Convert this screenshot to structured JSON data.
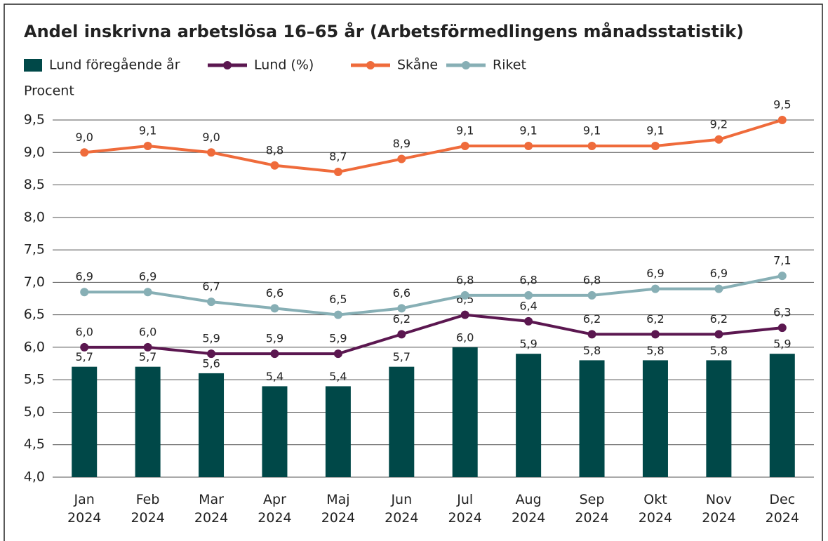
{
  "chart_data": {
    "type": "combo",
    "title": "Andel inskrivna arbetslösa 16–65 år (Arbetsförmedlingens månadsstatistik)",
    "y_label": "Procent",
    "categories": [
      "Jan 2024",
      "Feb 2024",
      "Mar 2024",
      "Apr 2024",
      "Maj 2024",
      "Jun 2024",
      "Jul 2024",
      "Aug 2024",
      "Sep 2024",
      "Okt 2024",
      "Nov 2024",
      "Dec 2024"
    ],
    "series": [
      {
        "name": "Lund föregående år",
        "type": "bar",
        "color": "#004848",
        "values": [
          5.7,
          5.7,
          5.6,
          5.4,
          5.4,
          5.7,
          6.0,
          5.9,
          5.8,
          5.8,
          5.8,
          5.9
        ],
        "value_labels": [
          "5,7",
          "5,7",
          "5,6",
          "5,4",
          "5,4",
          "5,7",
          "6,0",
          "5,9",
          "5,8",
          "5,8",
          "5,8",
          "5,9"
        ]
      },
      {
        "name": "Lund (%)",
        "type": "line",
        "color": "#5b1750",
        "values": [
          6.0,
          6.0,
          5.9,
          5.9,
          5.9,
          6.2,
          6.5,
          6.4,
          6.2,
          6.2,
          6.2,
          6.3
        ],
        "value_labels": [
          "6,0",
          "6,0",
          "5,9",
          "5,9",
          "5,9",
          "6,2",
          "6,5",
          "6,4",
          "6,2",
          "6,2",
          "6,2",
          "6,3"
        ]
      },
      {
        "name": "Skåne",
        "type": "line",
        "color": "#ef6b3b",
        "values": [
          9.0,
          9.1,
          9.0,
          8.8,
          8.7,
          8.9,
          9.1,
          9.1,
          9.1,
          9.1,
          9.2,
          9.5
        ],
        "value_labels": [
          "9,0",
          "9,1",
          "9,0",
          "8,8",
          "8,7",
          "8,9",
          "9,1",
          "9,1",
          "9,1",
          "9,1",
          "9,2",
          "9,5"
        ]
      },
      {
        "name": "Riket",
        "type": "line",
        "color": "#87afb5",
        "values": [
          6.85,
          6.85,
          6.7,
          6.6,
          6.5,
          6.6,
          6.8,
          6.8,
          6.8,
          6.9,
          6.9,
          7.1
        ],
        "value_labels": [
          "6,9",
          "6,9",
          "6,7",
          "6,6",
          "6,5",
          "6,6",
          "6,8",
          "6,8",
          "6,8",
          "6,9",
          "6,9",
          "7,1"
        ]
      }
    ],
    "ylim": [
      4.0,
      9.5
    ],
    "yticks": [
      {
        "value": 4.0,
        "label": "4,0"
      },
      {
        "value": 4.5,
        "label": "4,5"
      },
      {
        "value": 5.0,
        "label": "5,0"
      },
      {
        "value": 5.5,
        "label": "5,5"
      },
      {
        "value": 6.0,
        "label": "6,0"
      },
      {
        "value": 6.5,
        "label": "6,5"
      },
      {
        "value": 7.0,
        "label": "7,0"
      },
      {
        "value": 7.5,
        "label": "7,5"
      },
      {
        "value": 8.0,
        "label": "8,0"
      },
      {
        "value": 8.5,
        "label": "8,5"
      },
      {
        "value": 9.0,
        "label": "9,0"
      },
      {
        "value": 9.5,
        "label": "9,5"
      }
    ],
    "grid": true,
    "legend": "top"
  }
}
